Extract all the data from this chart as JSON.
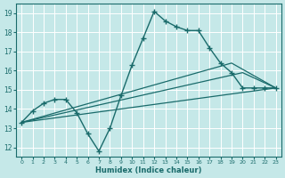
{
  "bg_color": "#c5e8e8",
  "line_color": "#1a6b6b",
  "grid_color": "#ffffff",
  "xlabel": "Humidex (Indice chaleur)",
  "xlim": [
    -0.5,
    23.5
  ],
  "ylim": [
    11.5,
    19.5
  ],
  "yticks": [
    12,
    13,
    14,
    15,
    16,
    17,
    18,
    19
  ],
  "xticks": [
    0,
    1,
    2,
    3,
    4,
    5,
    6,
    7,
    8,
    9,
    10,
    11,
    12,
    13,
    14,
    15,
    16,
    17,
    18,
    19,
    20,
    21,
    22,
    23
  ],
  "main_x": [
    0,
    1,
    2,
    3,
    4,
    5,
    6,
    7,
    8,
    9,
    10,
    11,
    12,
    13,
    14,
    15,
    16,
    17,
    18,
    19,
    20,
    21,
    22,
    23
  ],
  "main_y": [
    13.3,
    13.9,
    14.3,
    14.5,
    14.5,
    13.8,
    12.7,
    11.8,
    13.0,
    14.7,
    16.3,
    17.7,
    19.1,
    18.6,
    18.3,
    18.1,
    18.1,
    17.2,
    16.4,
    15.9,
    15.1,
    15.1,
    15.1,
    15.1
  ],
  "trend1_x": [
    0,
    19,
    23
  ],
  "trend1_y": [
    13.3,
    16.4,
    15.1
  ],
  "trend2_x": [
    0,
    20,
    23
  ],
  "trend2_y": [
    13.3,
    15.9,
    15.1
  ],
  "trend3_x": [
    0,
    23
  ],
  "trend3_y": [
    13.3,
    15.1
  ]
}
